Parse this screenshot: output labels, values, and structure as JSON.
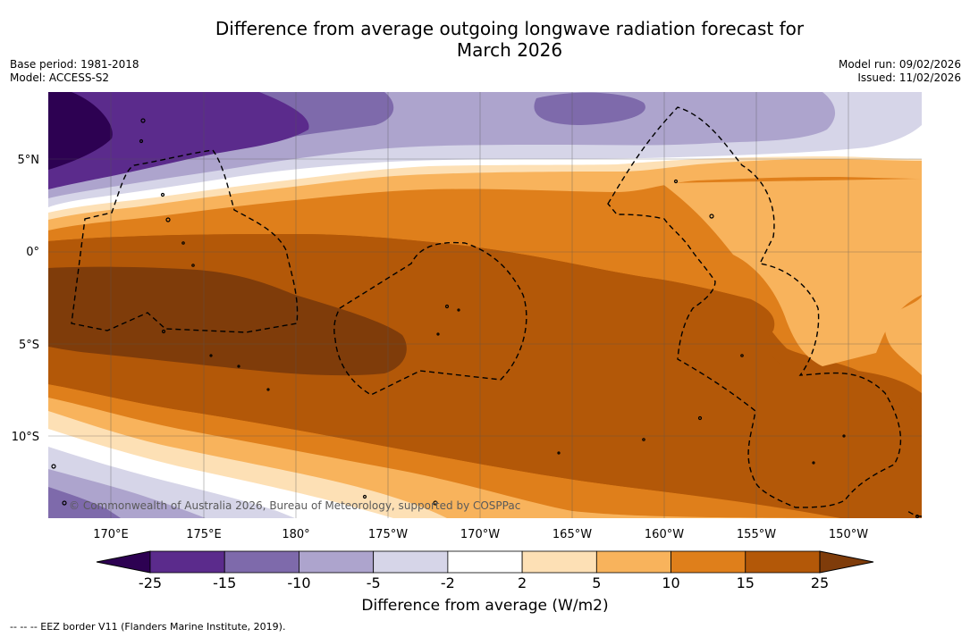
{
  "title_line1": "Difference from average outgoing longwave radiation forecast for",
  "title_line2": "March 2026",
  "base_period": "Base period: 1981-2018",
  "model": "Model: ACCESS-S2",
  "model_run": "Model run: 09/02/2026",
  "issued": "Issued: 11/02/2026",
  "copyright": "© Commonwealth of Australia 2026, Bureau of Meteorology, supported by COSPPac",
  "lat_labels": [
    "5°N",
    "0°",
    "5°S",
    "10°S"
  ],
  "lon_labels": [
    "170°E",
    "175°E",
    "180°",
    "175°W",
    "170°W",
    "165°W",
    "160°W",
    "155°W",
    "150°W"
  ],
  "colorbar": {
    "title": "Difference from average (W/m2)",
    "ticks": [
      "-25",
      "-15",
      "-10",
      "-5",
      "-2",
      "2",
      "5",
      "10",
      "15",
      "25"
    ],
    "colors": [
      "#5b2b8c",
      "#7e6aab",
      "#ada4cd",
      "#d6d5e8",
      "#ffffff",
      "#fde0b5",
      "#f8b35c",
      "#df7f1b",
      "#b35808"
    ],
    "under_color": "#2d0152",
    "over_color": "#7f3c0a"
  },
  "footnote": "--  --  -- EEZ border V11 (Flanders Marine Institute, 2019)."
}
